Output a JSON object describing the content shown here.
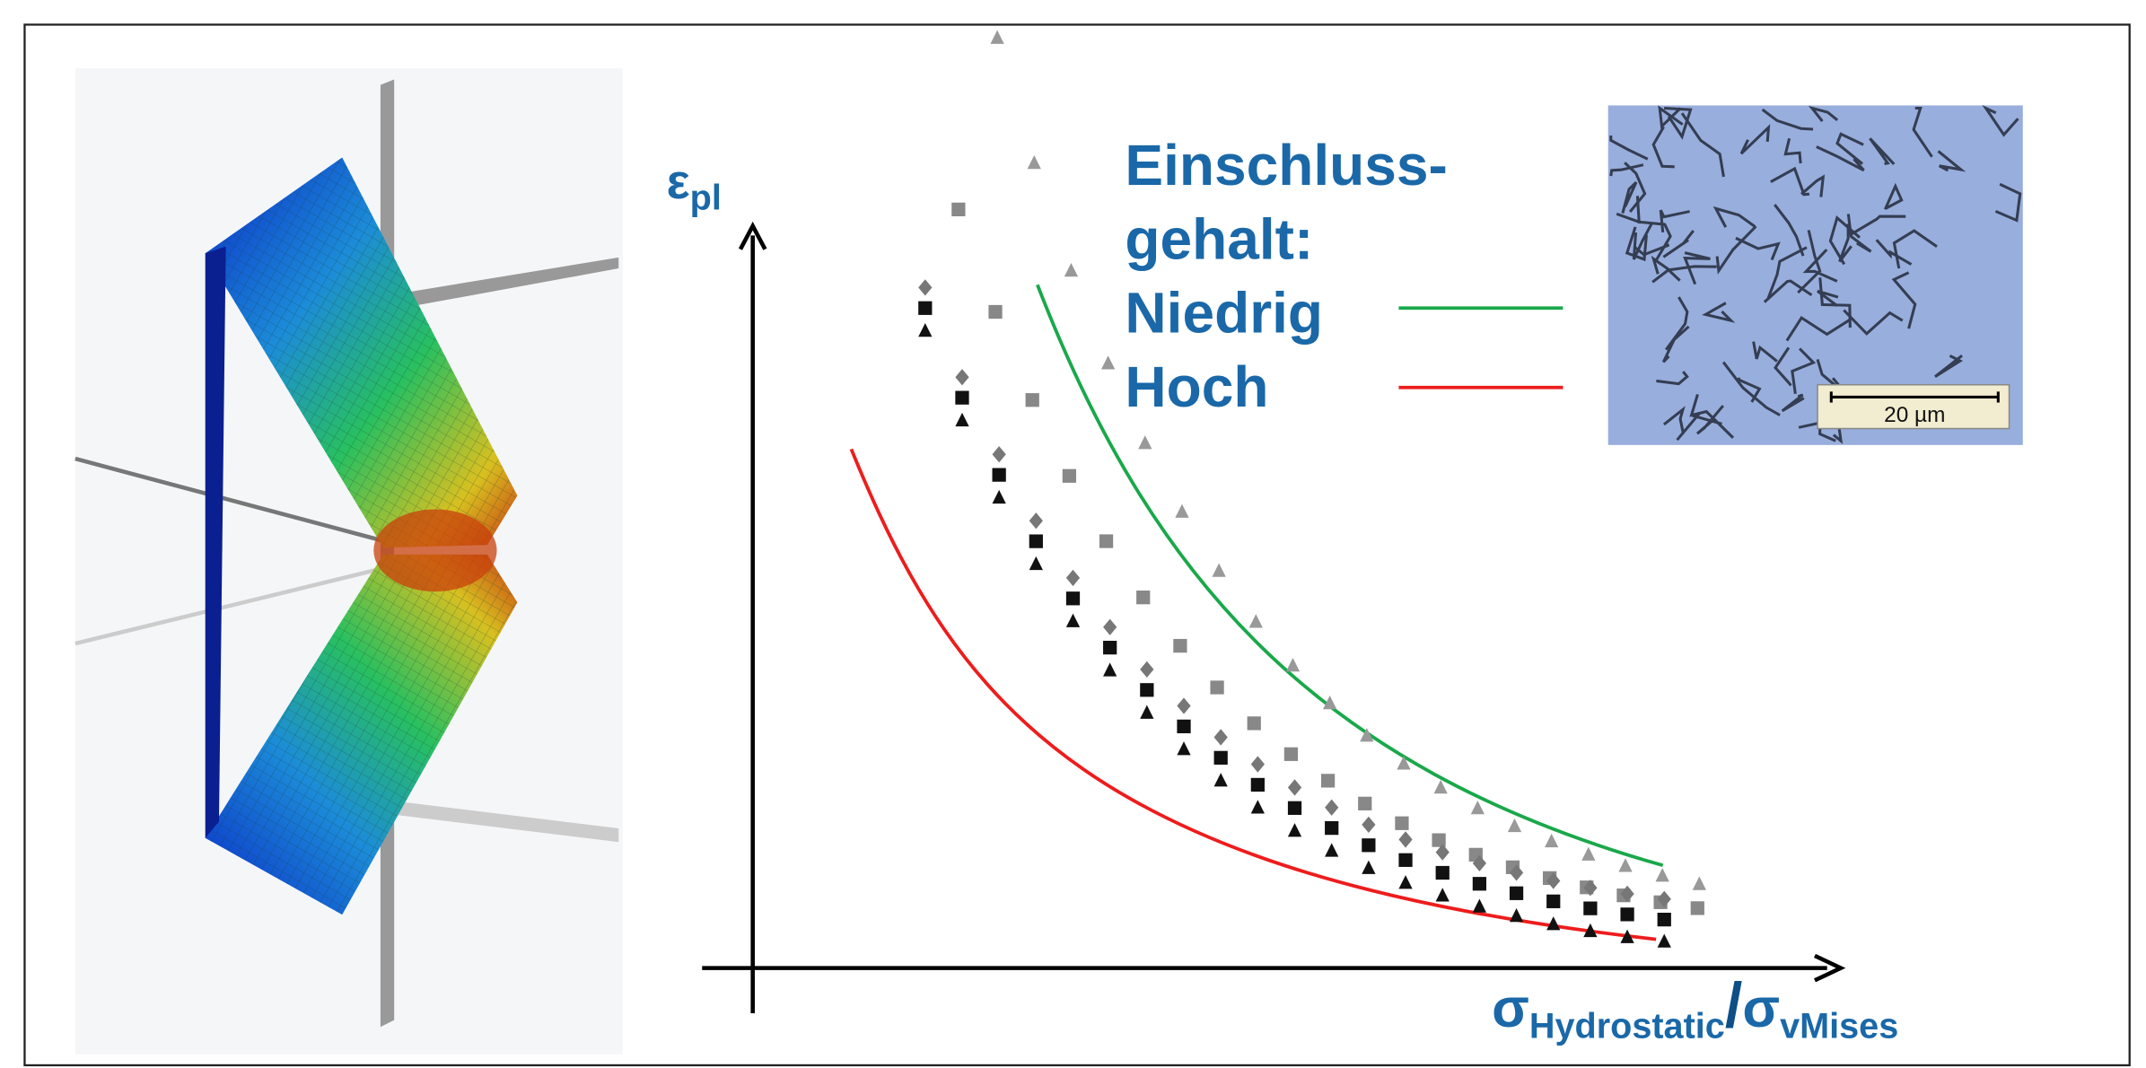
{
  "diagram": {
    "y_axis_label": {
      "symbol": "ε",
      "subscript": "pl"
    },
    "x_axis_label": {
      "numerator_symbol": "σ",
      "numerator_subscript": "Hydrostatic",
      "separator": "/",
      "denominator_symbol": "σ",
      "denominator_subscript": "vMises"
    },
    "legend": {
      "title_lines": [
        "Einschluss-",
        "gehalt:"
      ],
      "entries": [
        {
          "name": "Niedrig",
          "color": "#1aa84a"
        },
        {
          "name": "Hoch",
          "color": "#ee1c1c"
        }
      ]
    },
    "micrograph": {
      "scale_bar": "20 µm"
    }
  }
}
